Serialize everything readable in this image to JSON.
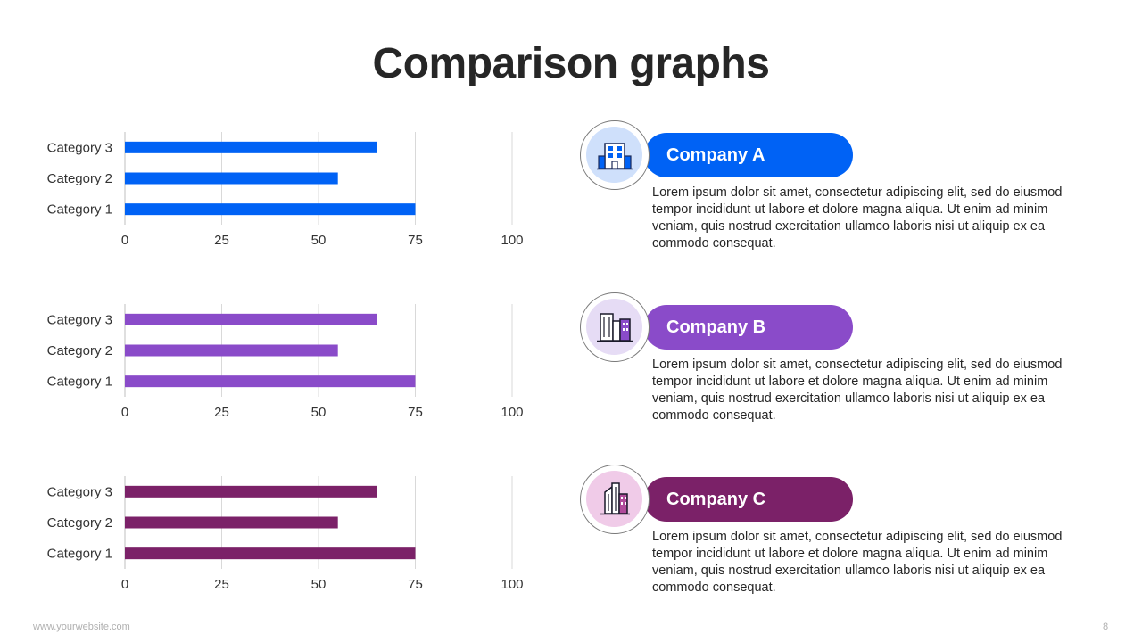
{
  "title": "Comparison graphs",
  "footer": {
    "url": "www.yourwebsite.com",
    "page": "8"
  },
  "colors": {
    "company_a": "#0062f5",
    "company_b": "#8a4bc9",
    "company_c": "#7b2168"
  },
  "companies": [
    {
      "name": "Company A",
      "icon": "office-building-icon",
      "description": "Lorem ipsum dolor sit amet, consectetur adipiscing elit, sed do eiusmod tempor incididunt ut labore et dolore magna aliqua. Ut enim ad minim veniam, quis nostrud exercitation ullamco laboris nisi ut aliquip ex ea commodo consequat."
    },
    {
      "name": "Company B",
      "icon": "city-buildings-icon",
      "description": "Lorem ipsum dolor sit amet, consectetur adipiscing elit, sed do eiusmod tempor incididunt ut labore et dolore magna aliqua. Ut enim ad minim veniam, quis nostrud exercitation ullamco laboris nisi ut aliquip ex ea commodo consequat."
    },
    {
      "name": "Company C",
      "icon": "skyscrapers-icon",
      "description": "Lorem ipsum dolor sit amet, consectetur adipiscing elit, sed do eiusmod tempor incididunt ut labore et dolore magna aliqua. Ut enim ad minim veniam, quis nostrud exercitation ullamco laboris nisi ut aliquip ex ea commodo consequat."
    }
  ],
  "chart_data": [
    {
      "type": "bar",
      "orientation": "horizontal",
      "categories": [
        "Category 3",
        "Category 2",
        "Category 1"
      ],
      "values": [
        65,
        55,
        75
      ],
      "xlim": [
        0,
        100
      ],
      "xticks": [
        0,
        25,
        50,
        75,
        100
      ],
      "grid": true,
      "color": "#0062f5"
    },
    {
      "type": "bar",
      "orientation": "horizontal",
      "categories": [
        "Category 3",
        "Category 2",
        "Category 1"
      ],
      "values": [
        65,
        55,
        75
      ],
      "xlim": [
        0,
        100
      ],
      "xticks": [
        0,
        25,
        50,
        75,
        100
      ],
      "grid": true,
      "color": "#8a4bc9"
    },
    {
      "type": "bar",
      "orientation": "horizontal",
      "categories": [
        "Category 3",
        "Category 2",
        "Category 1"
      ],
      "values": [
        65,
        55,
        75
      ],
      "xlim": [
        0,
        100
      ],
      "xticks": [
        0,
        25,
        50,
        75,
        100
      ],
      "grid": true,
      "color": "#7b2168"
    }
  ]
}
